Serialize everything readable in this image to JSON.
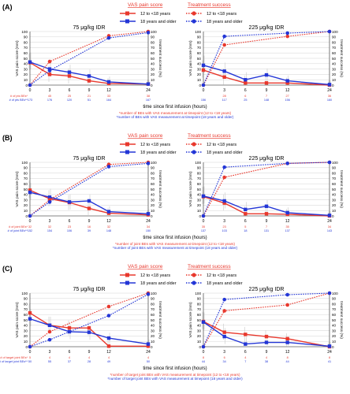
{
  "colors": {
    "young": "#e8382d",
    "old": "#2336d6",
    "axis": "#222222",
    "grid": "#c8c8c8",
    "whisker": "#c8c8c8"
  },
  "common": {
    "legend_vas_title": "VAS pain score",
    "legend_ts_title": "Treatment success",
    "legend_young": "12 to <18 years",
    "legend_old": "18 years and older",
    "ylabel_left": "VAS pain score (mm)",
    "ylabel_right": "treatment success (%)",
    "xlabel": "time since first infusion (hours)",
    "left_title": "75 μg/kg IDR",
    "right_title": "225 μg/kg IDR",
    "x_ticks": [
      "0",
      "3",
      "6",
      "9",
      "12",
      "24"
    ],
    "y_ticks": [
      "0",
      "10",
      "20",
      "30",
      "40",
      "50",
      "60",
      "70",
      "80",
      "90",
      "100"
    ],
    "y_ticks_right": [
      "0",
      "10",
      "20",
      "30",
      "40",
      "50",
      "60",
      "70",
      "80",
      "90",
      "100"
    ]
  },
  "panels": [
    {
      "letter": "(A)",
      "count_labels": [
        "# of pts BEs*",
        "# of pts BEs**"
      ],
      "footnote1": "*number of BEs with VAS measurement at timepoint (12 to <18 years)",
      "footnote2": "*number of BEs with VAS measurement at timepoint (18 years and older)"
    },
    {
      "letter": "(B)",
      "count_labels": [
        "# of joint BEs*",
        "# of joint BEs**"
      ],
      "footnote1": "*number of joint BEs with VAS measurement at timepoint (12 to <18 years)",
      "footnote2": "*number of joint BEs with VAS measurement at timepoint (18 years and older)"
    },
    {
      "letter": "(C)",
      "count_labels": [
        "# of target joint BEs*",
        "# of target joint BEs**"
      ],
      "footnote1": "*number of target joint BEs with VAS measurement at timepoint (12 to <18 years)",
      "footnote2": "*number of target joint BEs with VAS measurement at timepoint (18 years and older)"
    }
  ],
  "chart_data": [
    {
      "type": "line",
      "panel": "(A)",
      "title": "75 μg/kg IDR",
      "x": [
        0,
        3,
        6,
        9,
        12,
        24
      ],
      "ylim": [
        0,
        100
      ],
      "y2lim": [
        0,
        100
      ],
      "series": [
        {
          "name": "12 to <18 years",
          "measure": "VAS pain score",
          "values": [
            42,
            20,
            17,
            8,
            3,
            2
          ]
        },
        {
          "name": "18 years and older",
          "measure": "VAS pain score",
          "values": [
            43,
            30,
            24,
            17,
            6,
            2
          ]
        },
        {
          "name": "12 to <18 years",
          "measure": "Treatment success",
          "values": [
            0,
            44,
            null,
            null,
            92,
            100
          ]
        },
        {
          "name": "18 years and older",
          "measure": "Treatment success",
          "values": [
            0,
            27,
            null,
            null,
            88,
            98
          ]
        }
      ],
      "counts": {
        "young": [
          "",
          "45",
          "25",
          "21",
          "33",
          "38"
        ],
        "old": [
          "173",
          "176",
          "120",
          "51",
          "164",
          "167"
        ]
      }
    },
    {
      "type": "line",
      "panel": "(A)",
      "title": "225 μg/kg IDR",
      "x": [
        0,
        3,
        6,
        9,
        12,
        24
      ],
      "ylim": [
        0,
        100
      ],
      "y2lim": [
        0,
        100
      ],
      "series": [
        {
          "name": "12 to <18 years",
          "measure": "VAS pain score",
          "values": [
            28,
            15,
            4,
            4,
            4,
            0
          ]
        },
        {
          "name": "18 years and older",
          "measure": "VAS pain score",
          "values": [
            37,
            26,
            10,
            19,
            8,
            1
          ]
        },
        {
          "name": "12 to <18 years",
          "measure": "Treatment success",
          "values": [
            0,
            75,
            null,
            null,
            91,
            100
          ]
        },
        {
          "name": "18 years and older",
          "measure": "Treatment success",
          "values": [
            0,
            91,
            null,
            null,
            97,
            100
          ]
        }
      ],
      "counts": {
        "young": [
          "",
          "28",
          "6",
          "7",
          "27",
          "36"
        ],
        "old": [
          "156",
          "117",
          "25",
          "148",
          "156",
          "160"
        ]
      }
    },
    {
      "type": "line",
      "panel": "(B)",
      "title": "75 μg/kg IDR",
      "x": [
        0,
        3,
        6,
        9,
        12,
        24
      ],
      "ylim": [
        0,
        100
      ],
      "y2lim": [
        0,
        100
      ],
      "series": [
        {
          "name": "12 to <18 years",
          "measure": "VAS pain score",
          "values": [
            48,
            32,
            25,
            14,
            5,
            2
          ]
        },
        {
          "name": "18 years and older",
          "measure": "VAS pain score",
          "values": [
            44,
            35,
            26,
            28,
            8,
            4
          ]
        },
        {
          "name": "12 to <18 years",
          "measure": "Treatment success",
          "values": [
            0,
            30,
            null,
            null,
            96,
            100
          ]
        },
        {
          "name": "18 years and older",
          "measure": "Treatment success",
          "values": [
            0,
            26,
            null,
            null,
            92,
            98
          ]
        }
      ],
      "counts": {
        "young": [
          "32",
          "32",
          "23",
          "16",
          "32",
          "34"
        ],
        "old": [
          "152",
          "154",
          "106",
          "39",
          "148",
          "150"
        ]
      }
    },
    {
      "type": "line",
      "panel": "(B)",
      "title": "225 μg/kg IDR",
      "x": [
        0,
        3,
        6,
        9,
        12,
        24
      ],
      "ylim": [
        0,
        100
      ],
      "y2lim": [
        0,
        100
      ],
      "series": [
        {
          "name": "12 to <18 years",
          "measure": "VAS pain score",
          "values": [
            36,
            24,
            4,
            4,
            3,
            0
          ]
        },
        {
          "name": "18 years and older",
          "measure": "VAS pain score",
          "values": [
            37,
            28,
            12,
            18,
            6,
            1
          ]
        },
        {
          "name": "12 to <18 years",
          "measure": "Treatment success",
          "values": [
            0,
            72,
            null,
            null,
            98,
            100
          ]
        },
        {
          "name": "18 years and older",
          "measure": "Treatment success",
          "values": [
            0,
            91,
            null,
            null,
            98,
            100
          ]
        }
      ],
      "counts": {
        "young": [
          "35",
          "23",
          "5",
          "7",
          "35",
          "34"
        ],
        "old": [
          "137",
          "103",
          "18",
          "131",
          "137",
          "143"
        ]
      }
    },
    {
      "type": "line",
      "panel": "(C)",
      "title": "75 μg/kg IDR",
      "x": [
        0,
        3,
        6,
        9,
        12,
        24
      ],
      "ylim": [
        0,
        100
      ],
      "y2lim": [
        0,
        100
      ],
      "series": [
        {
          "name": "12 to <18 years",
          "measure": "VAS pain score",
          "values": [
            63,
            40,
            35,
            35,
            1,
            1
          ]
        },
        {
          "name": "18 years and older",
          "measure": "VAS pain score",
          "values": [
            52,
            40,
            28,
            27,
            16,
            5
          ]
        },
        {
          "name": "12 to <18 years",
          "measure": "Treatment success",
          "values": [
            0,
            28,
            null,
            null,
            75,
            100
          ]
        },
        {
          "name": "18 years and older",
          "measure": "Treatment success",
          "values": [
            0,
            13,
            null,
            null,
            58,
            98
          ]
        }
      ],
      "counts": {
        "young": [
          "5",
          "4",
          "4",
          "4",
          "4",
          "4"
        ],
        "old": [
          "50",
          "55",
          "37",
          "28",
          "49",
          "50"
        ]
      }
    },
    {
      "type": "line",
      "panel": "(C)",
      "title": "225 μg/kg IDR",
      "x": [
        0,
        3,
        6,
        9,
        12,
        24
      ],
      "ylim": [
        0,
        100
      ],
      "y2lim": [
        0,
        100
      ],
      "series": [
        {
          "name": "12 to <18 years",
          "measure": "VAS pain score",
          "values": [
            47,
            27,
            23,
            19,
            15,
            0
          ]
        },
        {
          "name": "18 years and older",
          "measure": "VAS pain score",
          "values": [
            46,
            19,
            5,
            8,
            8,
            1
          ]
        },
        {
          "name": "12 to <18 years",
          "measure": "Treatment success",
          "values": [
            0,
            67,
            null,
            null,
            78,
            100
          ]
        },
        {
          "name": "18 years and older",
          "measure": "Treatment success",
          "values": [
            0,
            88,
            null,
            null,
            97,
            100
          ]
        }
      ],
      "counts": {
        "young": [
          "8",
          "6",
          "4",
          "4",
          "8",
          "8"
        ],
        "old": [
          "44",
          "34",
          "7",
          "38",
          "44",
          "41"
        ]
      }
    }
  ]
}
